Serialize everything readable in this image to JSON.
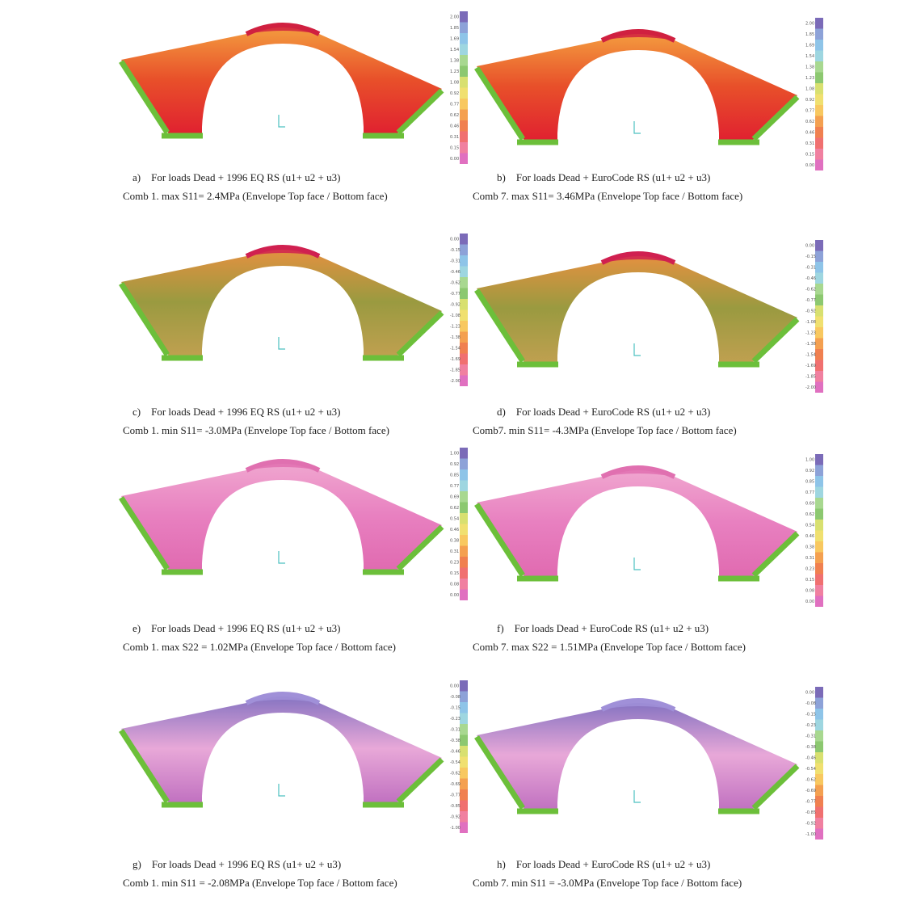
{
  "panels": [
    {
      "label": "a)",
      "loads": "For loads Dead + 1996 EQ RS (u1+ u2 + u3)",
      "result": "Comb 1. max S11= 2.4MPa (Envelope Top face / Bottom face)",
      "scale": [
        "2.00",
        "1.85",
        "1.69",
        "1.54",
        "1.38",
        "1.23",
        "1.08",
        "0.92",
        "0.77",
        "0.62",
        "0.46",
        "0.31",
        "0.15",
        "0.00"
      ]
    },
    {
      "label": "b)",
      "loads": "For loads Dead + EuroCode RS (u1+ u2 + u3)",
      "result": "Comb 7. max S11= 3.46MPa (Envelope Top face / Bottom face)",
      "scale": [
        "2.00",
        "1.85",
        "1.69",
        "1.54",
        "1.38",
        "1.23",
        "1.08",
        "0.92",
        "0.77",
        "0.62",
        "0.46",
        "0.31",
        "0.15",
        "0.00"
      ]
    },
    {
      "label": "c)",
      "loads": "For loads Dead + 1996 EQ RS (u1+ u2 + u3)",
      "result": "Comb 1. min S11= -3.0MPa (Envelope Top face / Bottom face)",
      "scale": [
        "0.00",
        "-0.15",
        "-0.31",
        "-0.46",
        "-0.62",
        "-0.77",
        "-0.92",
        "-1.08",
        "-1.23",
        "-1.38",
        "-1.54",
        "-1.69",
        "-1.85",
        "-2.00"
      ]
    },
    {
      "label": "d)",
      "loads": "For loads Dead + EuroCode RS (u1+ u2 + u3)",
      "result": "Comb7. min S11= -4.3MPa (Envelope Top face / Bottom face)",
      "scale": [
        "0.00",
        "-0.15",
        "-0.31",
        "-0.46",
        "-0.62",
        "-0.77",
        "-0.92",
        "-1.08",
        "-1.23",
        "-1.38",
        "-1.54",
        "-1.69",
        "-1.85",
        "-2.00"
      ]
    },
    {
      "label": "e)",
      "loads": "For loads Dead + 1996 EQ RS (u1+ u2 + u3)",
      "result": "Comb 1. max S22 = 1.02MPa (Envelope Top face / Bottom face)",
      "scale": [
        "1.00",
        "0.92",
        "0.85",
        "0.77",
        "0.69",
        "0.62",
        "0.54",
        "0.46",
        "0.38",
        "0.31",
        "0.23",
        "0.15",
        "0.08",
        "0.00"
      ]
    },
    {
      "label": "f)",
      "loads": "For loads Dead + EuroCode RS (u1+ u2 + u3)",
      "result": "Comb 7. max S22 = 1.51MPa (Envelope Top face / Bottom face)",
      "scale": [
        "1.00",
        "0.92",
        "0.85",
        "0.77",
        "0.69",
        "0.62",
        "0.54",
        "0.46",
        "0.38",
        "0.31",
        "0.23",
        "0.15",
        "0.08",
        "0.00"
      ]
    },
    {
      "label": "g)",
      "loads": "For loads Dead + 1996 EQ RS (u1+ u2 + u3)",
      "result": "Comb 1. min S11 = -2.08MPa (Envelope Top face / Bottom face)",
      "scale": [
        "0.00",
        "-0.08",
        "-0.15",
        "-0.23",
        "-0.31",
        "-0.38",
        "-0.46",
        "-0.54",
        "-0.62",
        "-0.69",
        "-0.77",
        "-0.85",
        "-0.92",
        "-1.00"
      ]
    },
    {
      "label": "h)",
      "loads": "For loads Dead + EuroCode RS (u1+ u2 + u3)",
      "result": "Comb 7. min S11 = -3.0MPa (Envelope Top face / Bottom face)",
      "scale": [
        "0.00",
        "-0.08",
        "-0.15",
        "-0.23",
        "-0.31",
        "-0.38",
        "-0.46",
        "-0.54",
        "-0.62",
        "-0.69",
        "-0.77",
        "-0.85",
        "-0.92",
        "-1.00"
      ]
    }
  ]
}
